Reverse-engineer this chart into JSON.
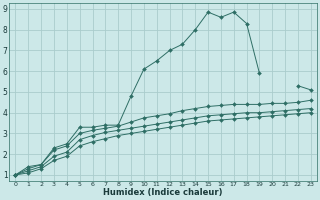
{
  "title": "",
  "xlabel": "Humidex (Indice chaleur)",
  "bg_color": "#cce8e8",
  "grid_color": "#aacccc",
  "line_color": "#2e6e65",
  "xlim": [
    0,
    23
  ],
  "ylim": [
    1,
    9
  ],
  "xticks": [
    0,
    1,
    2,
    3,
    4,
    5,
    6,
    7,
    8,
    9,
    10,
    11,
    12,
    13,
    14,
    15,
    16,
    17,
    18,
    19,
    20,
    21,
    22,
    23
  ],
  "yticks": [
    1,
    2,
    3,
    4,
    5,
    6,
    7,
    8,
    9
  ],
  "series": [
    {
      "x": [
        0,
        1,
        2,
        3,
        4,
        5,
        6,
        7,
        8,
        9,
        10,
        11,
        12,
        13,
        14,
        15,
        16,
        17,
        18,
        19,
        20,
        21,
        22,
        23
      ],
      "y": [
        1.0,
        1.4,
        1.5,
        2.3,
        2.5,
        3.3,
        3.3,
        3.4,
        3.4,
        4.8,
        6.1,
        6.5,
        7.0,
        7.3,
        8.0,
        8.85,
        8.6,
        8.85,
        8.3,
        5.9,
        null,
        null,
        5.3,
        5.1
      ]
    },
    {
      "x": [
        0,
        1,
        2,
        3,
        4,
        5,
        6,
        7,
        8,
        9,
        10,
        11,
        12,
        13,
        14,
        15,
        16,
        17,
        18,
        19,
        20,
        21,
        22,
        23
      ],
      "y": [
        1.0,
        1.3,
        1.5,
        2.2,
        2.4,
        3.0,
        3.15,
        3.25,
        3.35,
        3.55,
        3.75,
        3.85,
        3.95,
        4.1,
        4.2,
        4.3,
        4.35,
        4.4,
        4.4,
        4.4,
        4.45,
        4.45,
        4.5,
        4.6
      ]
    },
    {
      "x": [
        0,
        1,
        2,
        3,
        4,
        5,
        6,
        7,
        8,
        9,
        10,
        11,
        12,
        13,
        14,
        15,
        16,
        17,
        18,
        19,
        20,
        21,
        22,
        23
      ],
      "y": [
        1.0,
        1.2,
        1.4,
        1.9,
        2.1,
        2.7,
        2.9,
        3.05,
        3.15,
        3.25,
        3.35,
        3.45,
        3.55,
        3.65,
        3.75,
        3.85,
        3.9,
        3.95,
        4.0,
        4.0,
        4.05,
        4.1,
        4.15,
        4.2
      ]
    },
    {
      "x": [
        0,
        1,
        2,
        3,
        4,
        5,
        6,
        7,
        8,
        9,
        10,
        11,
        12,
        13,
        14,
        15,
        16,
        17,
        18,
        19,
        20,
        21,
        22,
        23
      ],
      "y": [
        1.0,
        1.1,
        1.3,
        1.7,
        1.9,
        2.4,
        2.6,
        2.75,
        2.9,
        3.0,
        3.1,
        3.2,
        3.3,
        3.4,
        3.5,
        3.6,
        3.65,
        3.7,
        3.75,
        3.8,
        3.85,
        3.9,
        3.95,
        4.0
      ]
    }
  ]
}
